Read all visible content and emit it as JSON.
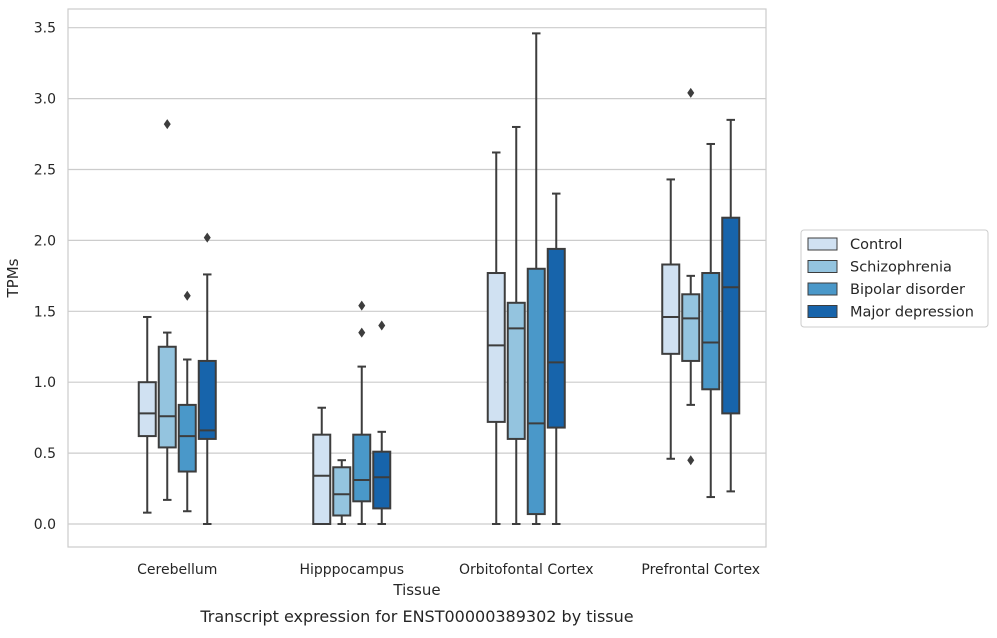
{
  "chart_data": {
    "type": "box",
    "xlabel": "Tissue",
    "ylabel": "TPMs",
    "caption": "Transcript expression for ENST00000389302 by tissue",
    "ylim": [
      -0.17,
      3.65
    ],
    "yticks": [
      0.0,
      0.5,
      1.0,
      1.5,
      2.0,
      2.5,
      3.0,
      3.5
    ],
    "ytick_labels": [
      "0.0",
      "0.5",
      "1.0",
      "1.5",
      "2.0",
      "2.5",
      "3.0",
      "3.5"
    ],
    "grid": "horizontal",
    "legend_position": "right, outside plot",
    "categories": [
      "Cerebellum",
      "Hipppocampus",
      "Orbitofontal Cortex",
      "Prefrontal Cortex"
    ],
    "series": [
      {
        "name": "Control",
        "color": "#d0e1f2",
        "boxes": [
          {
            "whislo": 0.08,
            "q1": 0.62,
            "med": 0.78,
            "q3": 1.0,
            "whishi": 1.46,
            "fliers": []
          },
          {
            "whislo": 0.0,
            "q1": 0.0,
            "med": 0.34,
            "q3": 0.63,
            "whishi": 0.82,
            "fliers": []
          },
          {
            "whislo": 0.0,
            "q1": 0.72,
            "med": 1.26,
            "q3": 1.77,
            "whishi": 2.62,
            "fliers": []
          },
          {
            "whislo": 0.46,
            "q1": 1.2,
            "med": 1.46,
            "q3": 1.83,
            "whishi": 2.43,
            "fliers": []
          }
        ]
      },
      {
        "name": "Schizophrenia",
        "color": "#94c4df",
        "boxes": [
          {
            "whislo": 0.17,
            "q1": 0.54,
            "med": 0.76,
            "q3": 1.25,
            "whishi": 1.35,
            "fliers": [
              2.82
            ]
          },
          {
            "whislo": 0.0,
            "q1": 0.06,
            "med": 0.21,
            "q3": 0.4,
            "whishi": 0.45,
            "fliers": []
          },
          {
            "whislo": 0.0,
            "q1": 0.6,
            "med": 1.38,
            "q3": 1.56,
            "whishi": 2.8,
            "fliers": []
          },
          {
            "whislo": 0.84,
            "q1": 1.15,
            "med": 1.45,
            "q3": 1.62,
            "whishi": 1.75,
            "fliers": [
              0.45,
              3.04
            ]
          }
        ]
      },
      {
        "name": "Bipolar disorder",
        "color": "#4a98c9",
        "boxes": [
          {
            "whislo": 0.09,
            "q1": 0.37,
            "med": 0.62,
            "q3": 0.84,
            "whishi": 1.16,
            "fliers": [
              1.61
            ]
          },
          {
            "whislo": 0.0,
            "q1": 0.16,
            "med": 0.31,
            "q3": 0.63,
            "whishi": 1.11,
            "fliers": [
              1.35,
              1.54
            ]
          },
          {
            "whislo": 0.0,
            "q1": 0.07,
            "med": 0.71,
            "q3": 1.8,
            "whishi": 3.46,
            "fliers": []
          },
          {
            "whislo": 0.19,
            "q1": 0.95,
            "med": 1.28,
            "q3": 1.77,
            "whishi": 2.68,
            "fliers": []
          }
        ]
      },
      {
        "name": "Major depression",
        "color": "#1764ab",
        "boxes": [
          {
            "whislo": 0.0,
            "q1": 0.6,
            "med": 0.66,
            "q3": 1.15,
            "whishi": 1.76,
            "fliers": [
              2.02
            ]
          },
          {
            "whislo": 0.0,
            "q1": 0.11,
            "med": 0.33,
            "q3": 0.51,
            "whishi": 0.65,
            "fliers": [
              1.4
            ]
          },
          {
            "whislo": 0.0,
            "q1": 0.68,
            "med": 1.14,
            "q3": 1.94,
            "whishi": 2.33,
            "fliers": []
          },
          {
            "whislo": 0.23,
            "q1": 0.78,
            "med": 1.67,
            "q3": 2.16,
            "whishi": 2.85,
            "fliers": []
          }
        ]
      }
    ]
  }
}
